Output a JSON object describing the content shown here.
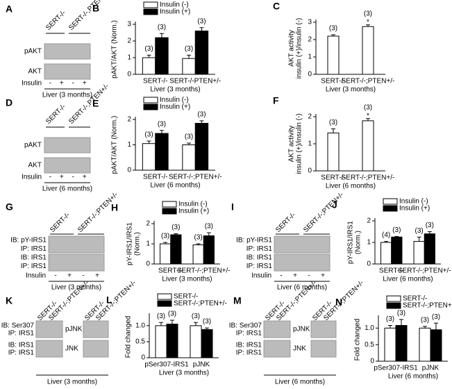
{
  "chart_data": [
    {
      "type": "bar",
      "panel": "B",
      "ylabel": [
        "pAKT/AKT (Norm.)"
      ],
      "xlabel": "Liver (3 months)",
      "categories": [
        "SERT-/-",
        "SERT-/-PTEN+/-"
      ],
      "ylim": [
        0,
        3
      ],
      "yticks": [
        0,
        1,
        2,
        3
      ],
      "legend": true,
      "series": [
        {
          "name": "Insulin (-)",
          "color": "#ffffff",
          "values": [
            1.0,
            0.95
          ],
          "errors": [
            0.15,
            0.2
          ],
          "n_labels": [
            "(3)",
            "(3)"
          ]
        },
        {
          "name": "Insulin (+)",
          "color": "#000000",
          "values": [
            2.2,
            2.6
          ],
          "errors": [
            0.25,
            0.2
          ],
          "n_labels": [
            "(3)",
            "(3)"
          ]
        }
      ]
    },
    {
      "type": "bar",
      "panel": "C",
      "ylabel": [
        "AKT activity",
        "insulin (+)/insulin (-)"
      ],
      "xlabel": "Liver (3 months)",
      "categories": [
        "SERT-/-",
        "SERT-/-;PTEN+/-"
      ],
      "ylim": [
        0,
        3
      ],
      "yticks": [
        0,
        1,
        2,
        3
      ],
      "legend": false,
      "series": [
        {
          "color": "#ffffff",
          "values": [
            2.2,
            2.75
          ],
          "errors": [
            0.08,
            0.1
          ],
          "n_labels": [
            "(3)",
            "(3)"
          ],
          "significance": [
            null,
            "*"
          ]
        }
      ]
    },
    {
      "type": "bar",
      "panel": "E",
      "ylabel": [
        "pAKT/AKT (Norm.)"
      ],
      "xlabel": "Liver (6 months)",
      "categories": [
        "SERT-/-",
        "SERT-/-;PTEN+/-"
      ],
      "ylim": [
        0,
        2
      ],
      "yticks": [
        0,
        1,
        2
      ],
      "legend": true,
      "series": [
        {
          "name": "Insulin (-)",
          "color": "#ffffff",
          "values": [
            1.05,
            1.0
          ],
          "errors": [
            0.1,
            0.07
          ],
          "n_labels": [
            "(3)",
            "(3)"
          ]
        },
        {
          "name": "Insulin (+)",
          "color": "#000000",
          "values": [
            1.45,
            1.85
          ],
          "errors": [
            0.12,
            0.1
          ],
          "n_labels": [
            "(3)",
            "(3)"
          ]
        }
      ]
    },
    {
      "type": "bar",
      "panel": "F",
      "ylabel": [
        "AKT activity",
        "insulin (+)/insulin (-)"
      ],
      "xlabel": "Liver (6 months)",
      "categories": [
        "SERT-/-",
        "SERT-/-;PTEN+/-"
      ],
      "ylim": [
        0,
        2
      ],
      "yticks": [
        0,
        1,
        2
      ],
      "legend": false,
      "series": [
        {
          "color": "#ffffff",
          "values": [
            1.4,
            1.85
          ],
          "errors": [
            0.15,
            0.08
          ],
          "n_labels": [
            "(3)",
            "(3)"
          ],
          "significance": [
            null,
            "*"
          ]
        }
      ]
    },
    {
      "type": "bar",
      "panel": "H",
      "ylabel": [
        "pY-IRS1/IRS1",
        "(Norm.)"
      ],
      "xlabel": "Liver (3 months)",
      "categories": [
        "SERT-/-",
        "SERT-/-;PTEN+/-"
      ],
      "ylim": [
        0,
        2
      ],
      "yticks": [
        0,
        1,
        2
      ],
      "legend": true,
      "series": [
        {
          "name": "Insulin (-)",
          "color": "#ffffff",
          "values": [
            1.0,
            0.95
          ],
          "errors": [
            0.07,
            0.05
          ],
          "n_labels": [
            "(3)",
            "(3)"
          ]
        },
        {
          "name": "Insulin (+)",
          "color": "#000000",
          "values": [
            1.45,
            1.4
          ],
          "errors": [
            0.05,
            0.15
          ],
          "n_labels": [
            "(3)",
            "(3)"
          ]
        }
      ]
    },
    {
      "type": "bar",
      "panel": "J",
      "ylabel": [
        "pY-IRS1/IRS1",
        "(Norm.)"
      ],
      "xlabel": "Liver (6 months)",
      "categories": [
        "SERT-/-",
        "SERT-/-;PTEN+/-"
      ],
      "ylim": [
        0,
        2
      ],
      "yticks": [
        0,
        1,
        2
      ],
      "legend": true,
      "series": [
        {
          "name": "Insulin (-)",
          "color": "#ffffff",
          "values": [
            1.0,
            1.05
          ],
          "errors": [
            0.05,
            0.2
          ],
          "n_labels": [
            "(4)",
            "(3)"
          ]
        },
        {
          "name": "Insulin (+)",
          "color": "#000000",
          "values": [
            1.25,
            1.4
          ],
          "errors": [
            0.03,
            0.1
          ],
          "n_labels": [
            "(3)",
            "(3)"
          ]
        }
      ]
    },
    {
      "type": "bar",
      "panel": "L",
      "ylabel": [
        "Fold changed"
      ],
      "xlabel": "Liver (3 months)",
      "categories": [
        "pSer307-IRS1",
        "pJNK"
      ],
      "ylim": [
        0,
        1.3
      ],
      "yticks": [
        0,
        0.5,
        {
          "value": 1,
          "label": "1.0"
        }
      ],
      "legend": true,
      "series": [
        {
          "name": "SERT-/-",
          "color": "#ffffff",
          "values": [
            1.0,
            1.0
          ],
          "errors": [
            0.1,
            0.1
          ],
          "n_labels": [
            "(3)",
            "(3)"
          ]
        },
        {
          "name": "SERT-/-;PTEN+/-",
          "color": "#000000",
          "values": [
            1.05,
            0.88
          ],
          "errors": [
            0.12,
            0.05
          ],
          "n_labels": [
            "(3)",
            "(3)"
          ]
        }
      ]
    },
    {
      "type": "bar",
      "panel": "N",
      "ylabel": [
        "Fold changed"
      ],
      "xlabel": "Liver (6 months)",
      "categories": [
        "pSer307-IRS1",
        "pJNK"
      ],
      "ylim": [
        0,
        1.3
      ],
      "yticks": [
        0,
        0.5,
        {
          "value": 1,
          "label": "1.0"
        }
      ],
      "legend": true,
      "series": [
        {
          "name": "SERT-/-",
          "color": "#ffffff",
          "values": [
            1.0,
            1.0
          ],
          "errors": [
            0.08,
            0.05
          ],
          "n_labels": [
            "(3)",
            "(3)"
          ]
        },
        {
          "name": "SERT-/-;PTEN+/-",
          "color": "#000000",
          "values": [
            1.08,
            0.95
          ],
          "errors": [
            0.18,
            0.2
          ],
          "n_labels": [
            "(3)",
            "(3)"
          ]
        }
      ]
    }
  ],
  "blots": [
    {
      "panel": "A",
      "header_groups": [
        [
          "SERT-/-",
          "SERT-/-,PTEN+/-"
        ]
      ],
      "rows": [
        "pAKT",
        "AKT"
      ],
      "insulin": "Insulin",
      "signs": [
        "-",
        "+",
        "-",
        "+"
      ],
      "footer": "Liver (3 months)"
    },
    {
      "panel": "D",
      "header_groups": [
        [
          "SERT-/-",
          "SERT-/-,PTEN+/-"
        ]
      ],
      "rows": [
        "pAKT",
        "AKT"
      ],
      "insulin": "Insulin",
      "signs": [
        "-",
        "+",
        "-",
        "+"
      ],
      "footer": "Liver (6 months)"
    },
    {
      "panel": "G",
      "header_groups": [
        [
          "SERT-/-",
          "SERT-/-;PTEN+/-"
        ]
      ],
      "rows": [
        "IB: pY-IRS1",
        "IP: IRS1",
        "IB: IRS1",
        "IP: IRS1"
      ],
      "insulin": "Insulin",
      "signs": [
        "-",
        "+",
        "-",
        "+"
      ],
      "footer": "Liver (3 months)"
    },
    {
      "panel": "I",
      "header_groups": [
        [
          "SERT-/-",
          "SERT-/-;PTEN+/-"
        ]
      ],
      "rows": [
        "IB: pY-IRS1",
        "IP: IRS1",
        "IB: IRS1",
        "IP: IRS1"
      ],
      "insulin": "Insulin",
      "signs": [
        "-",
        "+",
        "-",
        "+"
      ],
      "footer": "Liver (6 months)"
    },
    {
      "panel": "K",
      "header_groups": [
        [
          "SERT-/-",
          "SERT-/-;PTEN+/-"
        ],
        [
          "SERT-/-",
          "SERT-/-;PTEN+/-"
        ]
      ],
      "rows": [
        "IB: Ser307",
        "IP: IRS1",
        "IB: IRS1",
        "IP: IRS1"
      ],
      "side_rows": [
        "pJNK",
        "JNK"
      ],
      "footer": "Liver (3 months)"
    },
    {
      "panel": "M",
      "header_groups": [
        [
          "SERT-/-",
          "SERT-/-;PTEN+/-"
        ],
        [
          "SERT-/-",
          "SERT-/-;PTEN+/-"
        ]
      ],
      "rows": [
        "IB: Ser307",
        "IP: IRS1",
        "IB: IRS1",
        "IP: IRS1"
      ],
      "side_rows": [
        "pJNK",
        "JNK"
      ],
      "footer": "Liver (6 months)"
    }
  ]
}
